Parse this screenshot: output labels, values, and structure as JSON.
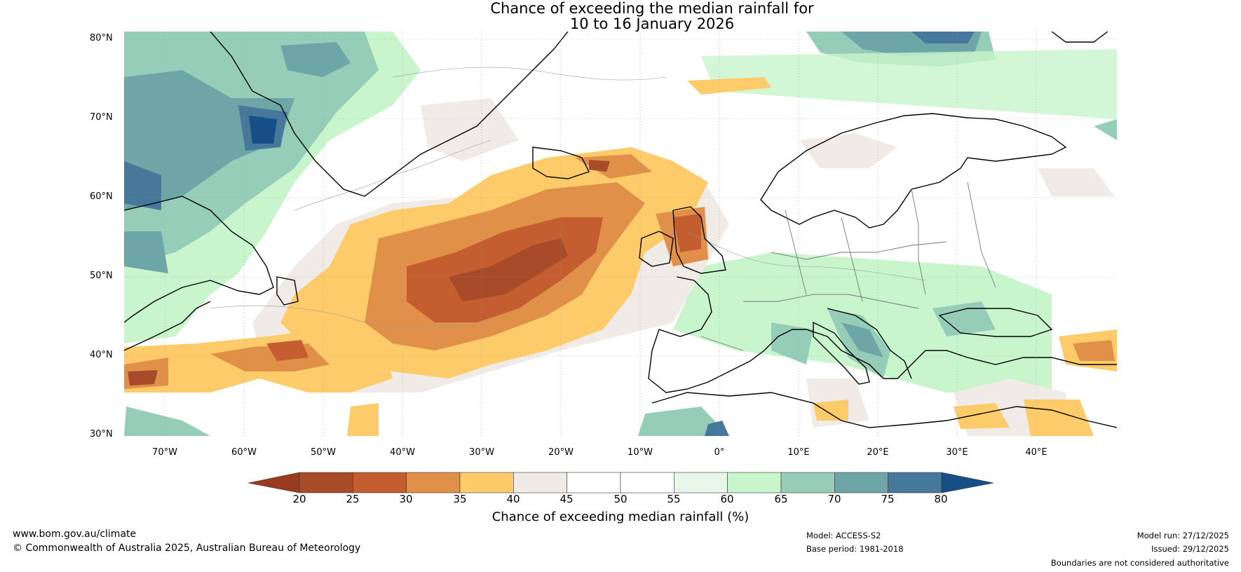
{
  "title": {
    "line1": "Chance of exceeding the median rainfall for",
    "line2": "10 to 16 January 2026"
  },
  "axes": {
    "lat_labels": [
      "80°N",
      "70°N",
      "60°N",
      "50°N",
      "40°N",
      "30°N"
    ],
    "lon_labels": [
      "70°W",
      "60°W",
      "50°W",
      "40°W",
      "30°W",
      "20°W",
      "10°W",
      "0°",
      "10°E",
      "20°E",
      "30°E",
      "40°E"
    ]
  },
  "colorbar": {
    "ticks": [
      "20",
      "25",
      "30",
      "35",
      "40",
      "45",
      "50",
      "55",
      "60",
      "65",
      "70",
      "75",
      "80"
    ],
    "colors": [
      "#a84b28",
      "#c45d30",
      "#e09048",
      "#fecb6a",
      "#f0ebe6",
      "#ffffff",
      "#ffffff",
      "#e8f5e9",
      "#c8f5cc",
      "#96cdb8",
      "#6ea6a8",
      "#45789a"
    ],
    "under_color": "#9a3a1e",
    "over_color": "#154f85",
    "label": "Chance of exceeding median rainfall (%)"
  },
  "footer": {
    "website": "www.bom.gov.au/climate",
    "copyright": "© Commonwealth of Australia 2025, Australian Bureau of Meteorology",
    "model": "Model: ACCESS-S2",
    "base_period": "Base period: 1981-2018",
    "model_run": "Model run: 27/12/2025",
    "issued": "Issued: 29/12/2025",
    "boundaries": "Boundaries are not considered authoritative"
  }
}
